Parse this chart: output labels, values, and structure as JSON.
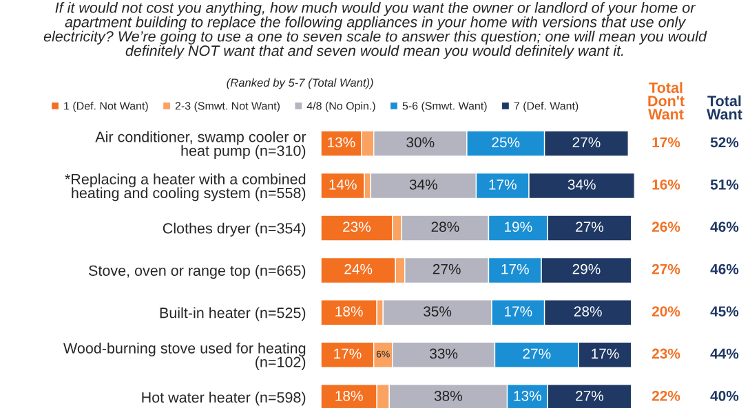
{
  "chart_data": {
    "type": "bar",
    "orientation": "horizontal",
    "stacked": true,
    "title": "If it would not cost you anything, how much would you want the owner or landlord of your home or\napartment building to replace the following appliances in your home with versions that use only\nelectricity? We’re going to use a one to seven scale to answer this question; one will mean you would\ndefinitely NOT want that and seven would mean you would definitely want it.",
    "subtitle": "(Ranked by 5-7 (Total Want))",
    "categories": [
      "Air conditioner, swamp cooler or\nheat pump (n=310)",
      "*Replacing a heater with a combined\nheating and cooling system (n=558)",
      "Clothes dryer (n=354)",
      "Stove, oven or range top (n=665)",
      "Built-in heater (n=525)",
      "Wood-burning stove used for heating\n(n=102)",
      "Hot water heater (n=598)"
    ],
    "series": [
      {
        "name": "1 (Def. Not Want)",
        "color": "#f37021",
        "values": [
          13,
          14,
          23,
          24,
          18,
          17,
          18
        ],
        "value_labels": [
          "13%",
          "14%",
          "23%",
          "24%",
          "18%",
          "17%",
          "18%"
        ]
      },
      {
        "name": "2-3 (Smwt. Not Want)",
        "color": "#f9a262",
        "values": [
          4,
          2,
          3,
          3,
          2,
          6,
          4
        ],
        "value_labels": [
          null,
          null,
          null,
          null,
          null,
          "6%",
          null
        ]
      },
      {
        "name": "4/8 (No Opin.)",
        "color": "#b4b4c0",
        "values": [
          30,
          34,
          28,
          27,
          35,
          33,
          38
        ],
        "value_labels": [
          "30%",
          "34%",
          "28%",
          "27%",
          "35%",
          "33%",
          "38%"
        ]
      },
      {
        "name": "5-6 (Smwt. Want)",
        "color": "#1b8fd4",
        "values": [
          25,
          17,
          19,
          17,
          17,
          27,
          13
        ],
        "value_labels": [
          "25%",
          "17%",
          "19%",
          "17%",
          "17%",
          "27%",
          "13%"
        ]
      },
      {
        "name": "7 (Def. Want)",
        "color": "#1f3864",
        "values": [
          27,
          34,
          27,
          29,
          28,
          17,
          27
        ],
        "value_labels": [
          "27%",
          "34%",
          "27%",
          "29%",
          "28%",
          "17%",
          "27%"
        ]
      }
    ],
    "xlim": [
      0,
      101
    ],
    "tick_labels": "y",
    "grid": false,
    "legend": "top",
    "annotations": [
      "Total\nDon't\nWant",
      "Total\nWant",
      "17%",
      "16%",
      "26%",
      "27%",
      "20%",
      "23%",
      "22%",
      "52%",
      "51%",
      "46%",
      "46%",
      "45%",
      "44%",
      "40%"
    ]
  }
}
